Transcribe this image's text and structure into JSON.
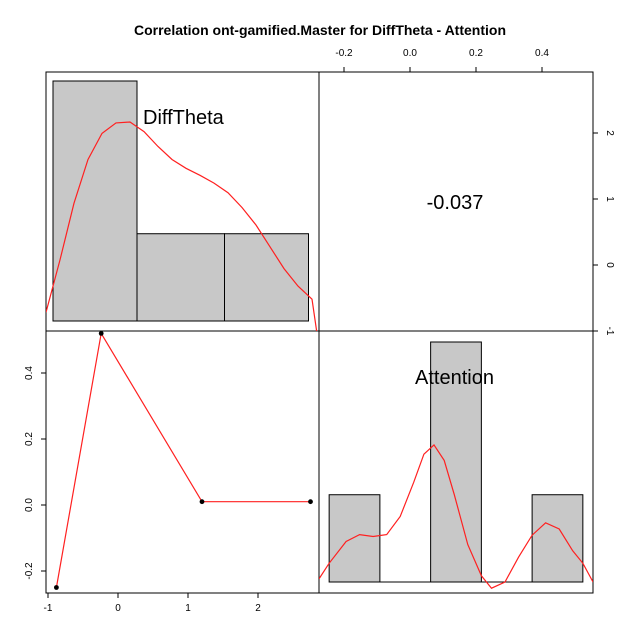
{
  "title": "Correlation ont-gamified.Master for DiffTheta - Attention",
  "variables": [
    "DiffTheta",
    "Attention"
  ],
  "correlation_label": "-0.037",
  "chart_data": [
    {
      "type": "bar",
      "panel": "diag-1",
      "variable": "DiffTheta",
      "bins": [
        [
          -0.9,
          0.3
        ],
        [
          0.3,
          1.55
        ],
        [
          1.55,
          2.75
        ]
      ],
      "values": [
        2.75,
        1.0,
        1.0
      ],
      "density_curve": [
        [
          -1.0,
          0.1
        ],
        [
          -0.8,
          0.7
        ],
        [
          -0.6,
          1.35
        ],
        [
          -0.4,
          1.85
        ],
        [
          -0.2,
          2.15
        ],
        [
          0.0,
          2.27
        ],
        [
          0.2,
          2.28
        ],
        [
          0.4,
          2.17
        ],
        [
          0.6,
          2.0
        ],
        [
          0.8,
          1.85
        ],
        [
          1.0,
          1.75
        ],
        [
          1.2,
          1.67
        ],
        [
          1.4,
          1.58
        ],
        [
          1.6,
          1.47
        ],
        [
          1.8,
          1.3
        ],
        [
          2.0,
          1.1
        ],
        [
          2.2,
          0.85
        ],
        [
          2.4,
          0.6
        ],
        [
          2.6,
          0.4
        ],
        [
          2.8,
          0.25
        ],
        [
          2.9,
          -0.3
        ]
      ],
      "xlim": [
        -1.0,
        2.9
      ]
    },
    {
      "type": "bar",
      "panel": "diag-2",
      "variable": "Attention",
      "bins": [
        [
          -0.25,
          -0.1
        ],
        [
          0.05,
          0.2
        ],
        [
          0.35,
          0.5
        ]
      ],
      "values": [
        1,
        2.75,
        1
      ],
      "density_curve": [
        [
          -0.28,
          0.05
        ],
        [
          -0.25,
          0.3
        ],
        [
          -0.2,
          0.65
        ],
        [
          -0.16,
          0.76
        ],
        [
          -0.12,
          0.73
        ],
        [
          -0.08,
          0.76
        ],
        [
          -0.04,
          1.05
        ],
        [
          0.0,
          1.6
        ],
        [
          0.03,
          2.05
        ],
        [
          0.06,
          2.2
        ],
        [
          0.09,
          1.95
        ],
        [
          0.12,
          1.4
        ],
        [
          0.16,
          0.6
        ],
        [
          0.2,
          0.1
        ],
        [
          0.23,
          -0.1
        ],
        [
          0.27,
          0.0
        ],
        [
          0.31,
          0.4
        ],
        [
          0.35,
          0.75
        ],
        [
          0.39,
          0.95
        ],
        [
          0.43,
          0.85
        ],
        [
          0.47,
          0.5
        ],
        [
          0.5,
          0.3
        ],
        [
          0.53,
          0.0
        ]
      ],
      "xlim": [
        -0.28,
        0.53
      ]
    },
    {
      "type": "line",
      "panel": "lower",
      "xlabel": "DiffTheta",
      "ylabel": "Attention",
      "x": [
        -0.88,
        -0.24,
        1.2,
        2.75
      ],
      "y": [
        -0.25,
        0.52,
        0.01,
        0.01
      ],
      "xlim": [
        -1.0,
        2.9
      ],
      "ylim": [
        -0.28,
        0.55
      ],
      "grid": false
    }
  ],
  "axes": {
    "top_ticks": [
      "-0.2",
      "0.0",
      "0.2",
      "0.4"
    ],
    "right_ticks": [
      "-1",
      "0",
      "1",
      "2"
    ],
    "bottom_ticks": [
      "-1",
      "0",
      "1",
      "2"
    ],
    "left_ticks": [
      "-0.2",
      "0.0",
      "0.2",
      "0.4"
    ]
  },
  "colors": {
    "bar_fill": "#c8c8c8",
    "curve": "#ff2020",
    "point": "#000000"
  }
}
